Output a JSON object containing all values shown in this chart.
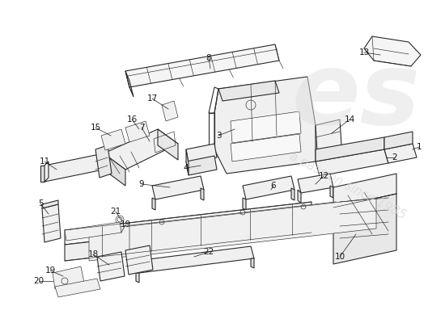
{
  "background_color": "#ffffff",
  "line_color": "#2a2a2a",
  "label_color": "#1a1a1a",
  "watermark_es_color": "#e0e0e0",
  "watermark_text_color": "#d8d8d8",
  "figsize": [
    5.5,
    4.0
  ],
  "dpi": 100,
  "lw_main": 0.8,
  "lw_thin": 0.45,
  "label_fontsize": 7.5
}
